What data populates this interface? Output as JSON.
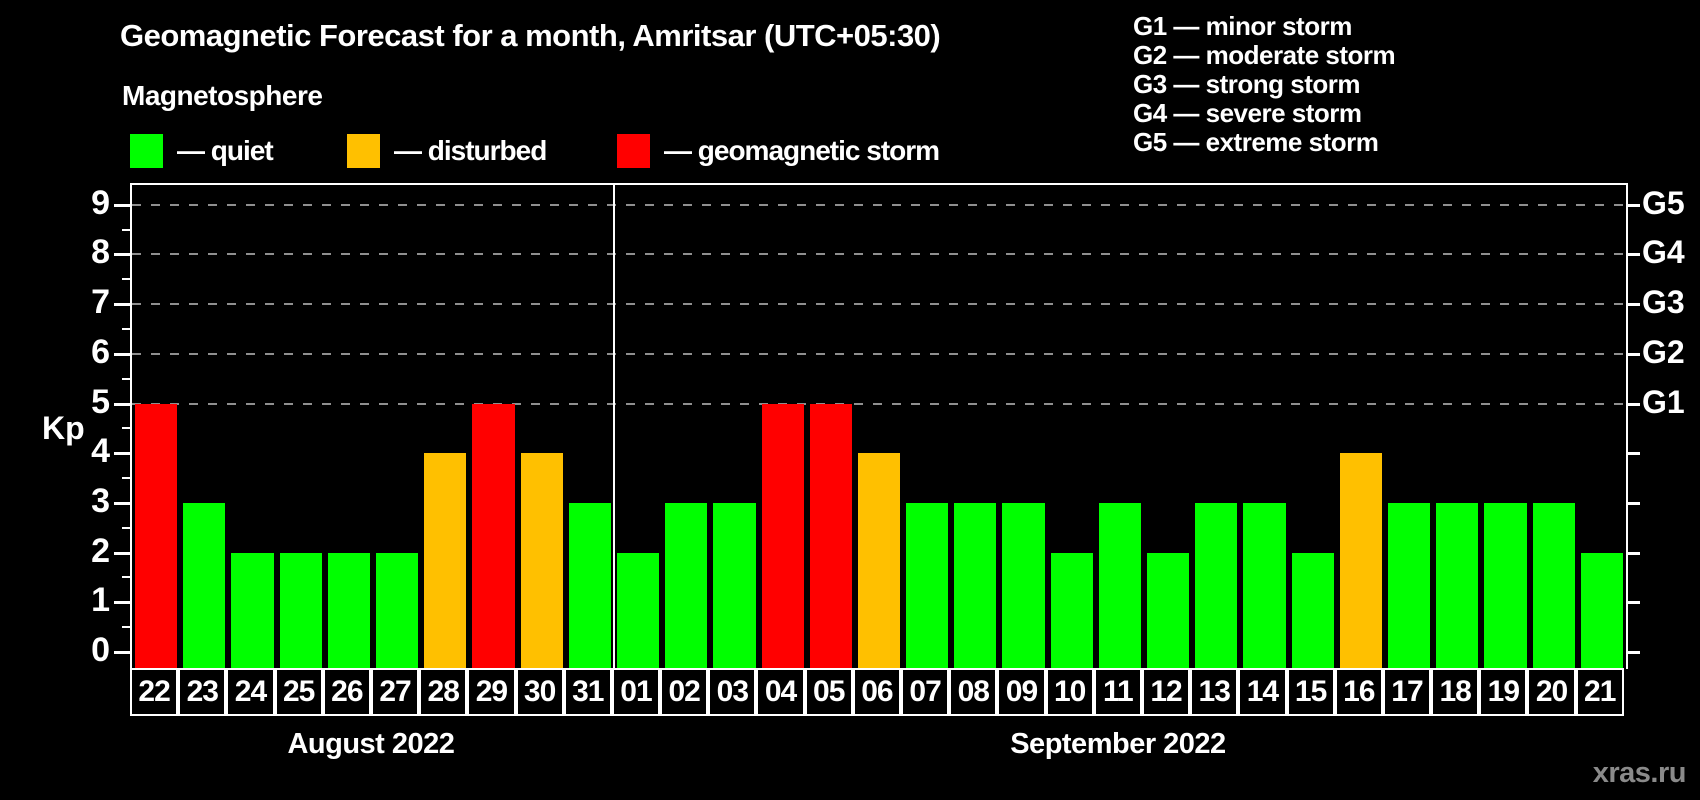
{
  "header": {
    "title": "Geomagnetic Forecast for a month, Amritsar (UTC+05:30)",
    "subtitle": "Magnetosphere"
  },
  "kp_legend": [
    {
      "name": "quiet",
      "label": "— quiet",
      "color": "#00ff00"
    },
    {
      "name": "disturbed",
      "label": "— disturbed",
      "color": "#ffc000"
    },
    {
      "name": "storm",
      "label": "— geomagnetic storm",
      "color": "#ff0000"
    }
  ],
  "storm_scale_legend": [
    {
      "code": "G1",
      "label": "G1 — minor storm"
    },
    {
      "code": "G2",
      "label": "G2 — moderate storm"
    },
    {
      "code": "G3",
      "label": "G3 — strong storm"
    },
    {
      "code": "G4",
      "label": "G4 — severe storm"
    },
    {
      "code": "G5",
      "label": "G5 — extreme storm"
    }
  ],
  "chart_data": {
    "type": "bar",
    "title": "Geomagnetic Forecast for a month, Amritsar (UTC+05:30)",
    "ylabel": "Kp",
    "ylim": [
      0,
      9
    ],
    "yticks": [
      0,
      1,
      2,
      3,
      4,
      5,
      6,
      7,
      8,
      9
    ],
    "gridlines_at_kp": [
      5,
      6,
      7,
      8,
      9
    ],
    "right_axis": [
      {
        "label": "G1",
        "kp": 5
      },
      {
        "label": "G2",
        "kp": 6
      },
      {
        "label": "G3",
        "kp": 7
      },
      {
        "label": "G4",
        "kp": 8
      },
      {
        "label": "G5",
        "kp": 9
      }
    ],
    "colors": {
      "quiet": "#00ff00",
      "disturbed": "#ffc000",
      "storm": "#ff0000"
    },
    "months": [
      {
        "label": "August 2022",
        "days": [
          {
            "day": "22",
            "kp": 5,
            "status": "storm"
          },
          {
            "day": "23",
            "kp": 3,
            "status": "quiet"
          },
          {
            "day": "24",
            "kp": 2,
            "status": "quiet"
          },
          {
            "day": "25",
            "kp": 2,
            "status": "quiet"
          },
          {
            "day": "26",
            "kp": 2,
            "status": "quiet"
          },
          {
            "day": "27",
            "kp": 2,
            "status": "quiet"
          },
          {
            "day": "28",
            "kp": 4,
            "status": "disturbed"
          },
          {
            "day": "29",
            "kp": 5,
            "status": "storm"
          },
          {
            "day": "30",
            "kp": 4,
            "status": "disturbed"
          },
          {
            "day": "31",
            "kp": 3,
            "status": "quiet"
          }
        ]
      },
      {
        "label": "September 2022",
        "days": [
          {
            "day": "01",
            "kp": 2,
            "status": "quiet"
          },
          {
            "day": "02",
            "kp": 3,
            "status": "quiet"
          },
          {
            "day": "03",
            "kp": 3,
            "status": "quiet"
          },
          {
            "day": "04",
            "kp": 5,
            "status": "storm"
          },
          {
            "day": "05",
            "kp": 5,
            "status": "storm"
          },
          {
            "day": "06",
            "kp": 4,
            "status": "disturbed"
          },
          {
            "day": "07",
            "kp": 3,
            "status": "quiet"
          },
          {
            "day": "08",
            "kp": 3,
            "status": "quiet"
          },
          {
            "day": "09",
            "kp": 3,
            "status": "quiet"
          },
          {
            "day": "10",
            "kp": 2,
            "status": "quiet"
          },
          {
            "day": "11",
            "kp": 3,
            "status": "quiet"
          },
          {
            "day": "12",
            "kp": 2,
            "status": "quiet"
          },
          {
            "day": "13",
            "kp": 3,
            "status": "quiet"
          },
          {
            "day": "14",
            "kp": 3,
            "status": "quiet"
          },
          {
            "day": "15",
            "kp": 2,
            "status": "quiet"
          },
          {
            "day": "16",
            "kp": 4,
            "status": "disturbed"
          },
          {
            "day": "17",
            "kp": 3,
            "status": "quiet"
          },
          {
            "day": "18",
            "kp": 3,
            "status": "quiet"
          },
          {
            "day": "19",
            "kp": 3,
            "status": "quiet"
          },
          {
            "day": "20",
            "kp": 3,
            "status": "quiet"
          },
          {
            "day": "21",
            "kp": 2,
            "status": "quiet"
          }
        ]
      }
    ]
  },
  "watermark": "xras.ru"
}
